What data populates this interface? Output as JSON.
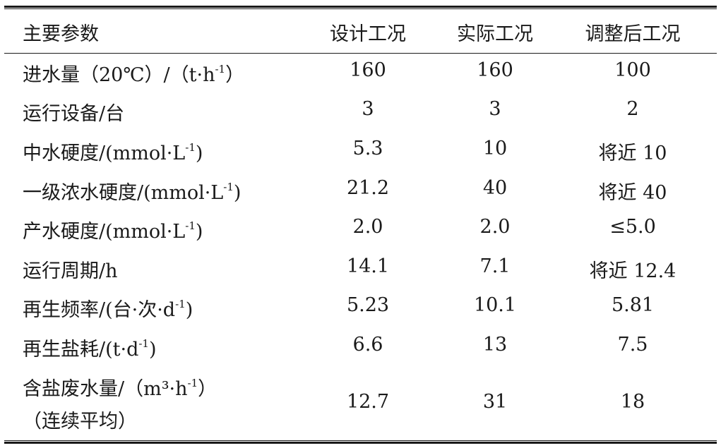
{
  "table": {
    "headers": [
      "主要参数",
      "设计工况",
      "实际工况",
      "调整后工况"
    ],
    "rows": [
      {
        "param": "进水量（20℃）/（t·h",
        "sup": "-1",
        "tail": "）",
        "design": "160",
        "actual": "160",
        "adjusted": "100"
      },
      {
        "param": "运行设备/台",
        "sup": "",
        "tail": "",
        "design": "3",
        "actual": "3",
        "adjusted": "2"
      },
      {
        "param": "中水硬度/(mmol·L",
        "sup": "-1",
        "tail": ")",
        "design": "5.3",
        "actual": "10",
        "adjusted": "将近 10"
      },
      {
        "param": "一级浓水硬度/(mmol·L",
        "sup": "-1",
        "tail": ")",
        "design": "21.2",
        "actual": "40",
        "adjusted": "将近 40"
      },
      {
        "param": "产水硬度/(mmol·L",
        "sup": "-1",
        "tail": ")",
        "design": "2.0",
        "actual": "2.0",
        "adjusted": "≤5.0"
      },
      {
        "param": "运行周期/h",
        "sup": "",
        "tail": "",
        "design": "14.1",
        "actual": "7.1",
        "adjusted": "将近 12.4"
      },
      {
        "param": "再生频率/(台·次·d",
        "sup": "-1",
        "tail": ")",
        "design": "5.23",
        "actual": "10.1",
        "adjusted": "5.81"
      },
      {
        "param": "再生盐耗/(t·d",
        "sup": "-1",
        "tail": ")",
        "design": "6.6",
        "actual": "13",
        "adjusted": "7.5"
      }
    ],
    "last_row": {
      "param_line1": "含盐废水量/（m³·h",
      "sup": "-1",
      "tail": "）",
      "param_line2": "（连续平均）",
      "design": "12.7",
      "actual": "31",
      "adjusted": "18"
    }
  }
}
